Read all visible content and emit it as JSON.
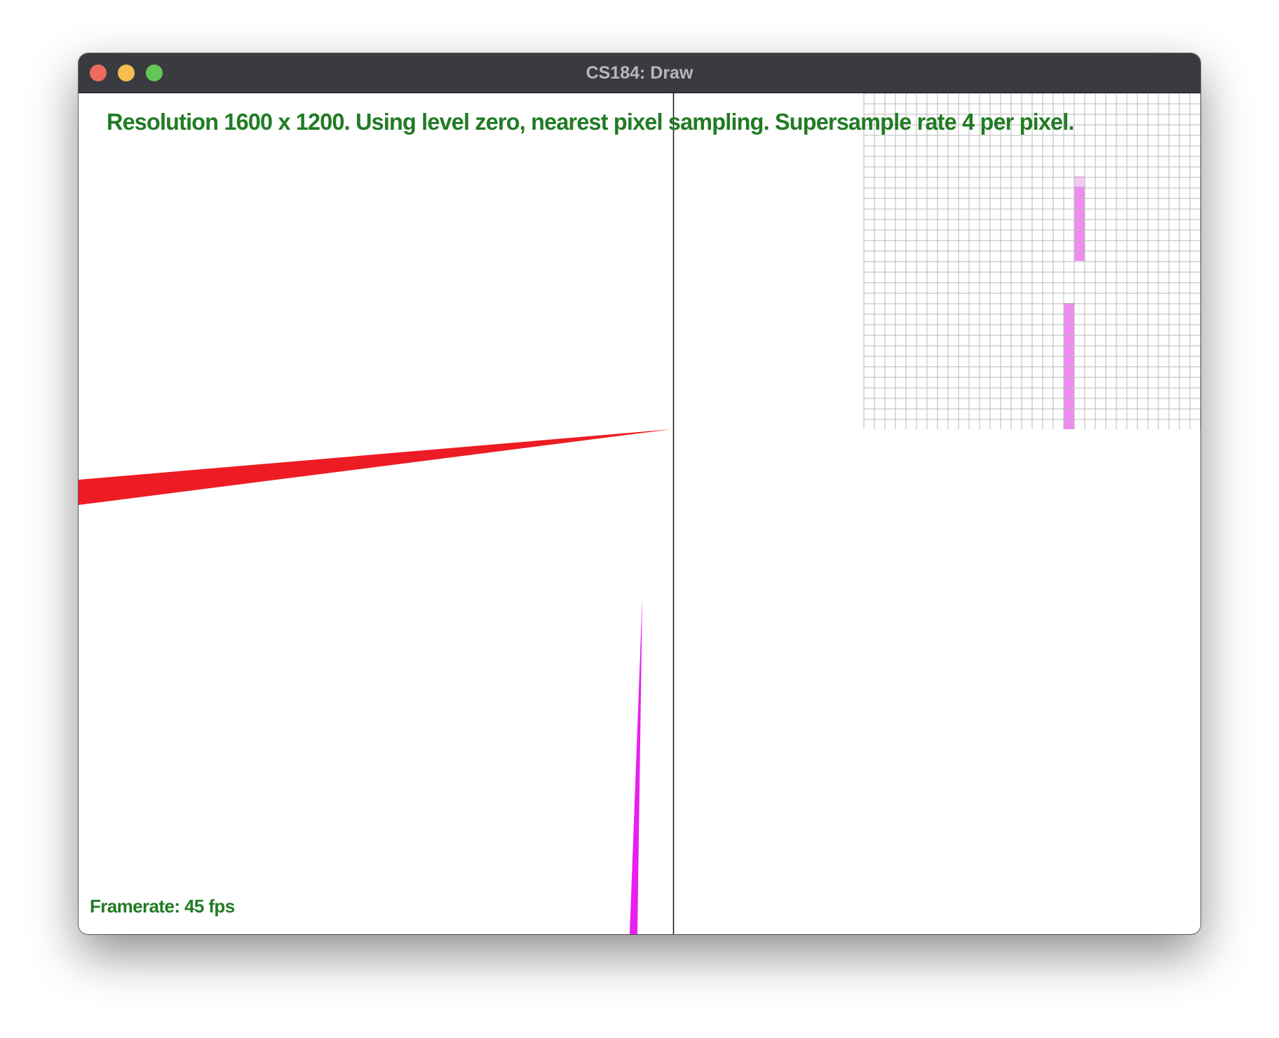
{
  "window": {
    "title": "CS184: Draw"
  },
  "overlay": {
    "status": "Resolution 1600 x 1200. Using level zero, nearest pixel sampling. Supersample rate 4 per pixel.",
    "framerate": "Framerate: 45 fps"
  },
  "colors": {
    "titlebar": "#3a3b40",
    "text": "#217b24",
    "red_triangle": "#ed1c24",
    "magenta_triangle": "#e91ef0",
    "zoom_pixel": "#f08cf0"
  }
}
